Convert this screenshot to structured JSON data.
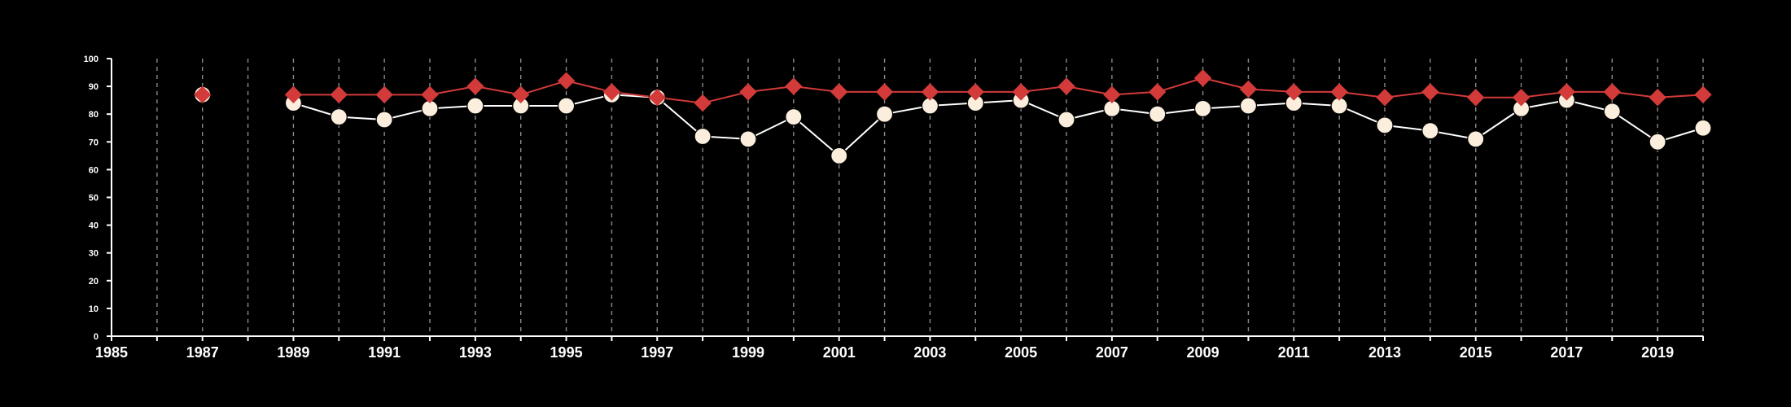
{
  "colors": {
    "background": "#000000",
    "axis": "#ffffff",
    "grid": "#8a8a8a",
    "series_a_fill": "#fbeedd",
    "series_a_line": "#ffffff",
    "series_b_fill": "#d33a3a",
    "series_b_line": "#d33a3a"
  },
  "chart_data": {
    "type": "line",
    "title": "",
    "xlabel": "",
    "ylabel": "",
    "xlim": [
      1985,
      2020
    ],
    "ylim": [
      0,
      100
    ],
    "x_ticks": [
      1985,
      1987,
      1989,
      1991,
      1993,
      1995,
      1997,
      1999,
      2001,
      2003,
      2005,
      2007,
      2009,
      2011,
      2013,
      2015,
      2017,
      2019
    ],
    "y_ticks": [
      0,
      10,
      20,
      30,
      40,
      50,
      60,
      70,
      80,
      90,
      100
    ],
    "grid": {
      "vertical": true,
      "horizontal": false,
      "style": "dashed",
      "every": 1
    },
    "legend": "none",
    "series": [
      {
        "marker": "circle",
        "points": [
          [
            1987,
            87
          ],
          [
            1989,
            84
          ],
          [
            1990,
            79
          ],
          [
            1991,
            78
          ],
          [
            1992,
            82
          ],
          [
            1993,
            83
          ],
          [
            1994,
            83
          ],
          [
            1995,
            83
          ],
          [
            1996,
            87
          ],
          [
            1997,
            86
          ],
          [
            1998,
            72
          ],
          [
            1999,
            71
          ],
          [
            2000,
            79
          ],
          [
            2001,
            65
          ],
          [
            2002,
            80
          ],
          [
            2003,
            83
          ],
          [
            2004,
            84
          ],
          [
            2005,
            85
          ],
          [
            2006,
            78
          ],
          [
            2007,
            82
          ],
          [
            2008,
            80
          ],
          [
            2009,
            82
          ],
          [
            2010,
            83
          ],
          [
            2011,
            84
          ],
          [
            2012,
            83
          ],
          [
            2013,
            76
          ],
          [
            2014,
            74
          ],
          [
            2015,
            71
          ],
          [
            2016,
            82
          ],
          [
            2017,
            85
          ],
          [
            2018,
            81
          ],
          [
            2019,
            70
          ],
          [
            2020,
            75
          ]
        ]
      },
      {
        "marker": "diamond",
        "points": [
          [
            1987,
            87
          ],
          [
            1989,
            87
          ],
          [
            1990,
            87
          ],
          [
            1991,
            87
          ],
          [
            1992,
            87
          ],
          [
            1993,
            90
          ],
          [
            1994,
            87
          ],
          [
            1995,
            92
          ],
          [
            1996,
            88
          ],
          [
            1997,
            86
          ],
          [
            1998,
            84
          ],
          [
            1999,
            88
          ],
          [
            2000,
            90
          ],
          [
            2001,
            88
          ],
          [
            2002,
            88
          ],
          [
            2003,
            88
          ],
          [
            2004,
            88
          ],
          [
            2005,
            88
          ],
          [
            2006,
            90
          ],
          [
            2007,
            87
          ],
          [
            2008,
            88
          ],
          [
            2009,
            93
          ],
          [
            2010,
            89
          ],
          [
            2011,
            88
          ],
          [
            2012,
            88
          ],
          [
            2013,
            86
          ],
          [
            2014,
            88
          ],
          [
            2015,
            86
          ],
          [
            2016,
            86
          ],
          [
            2017,
            88
          ],
          [
            2018,
            88
          ],
          [
            2019,
            86
          ],
          [
            2020,
            87
          ]
        ]
      }
    ]
  }
}
